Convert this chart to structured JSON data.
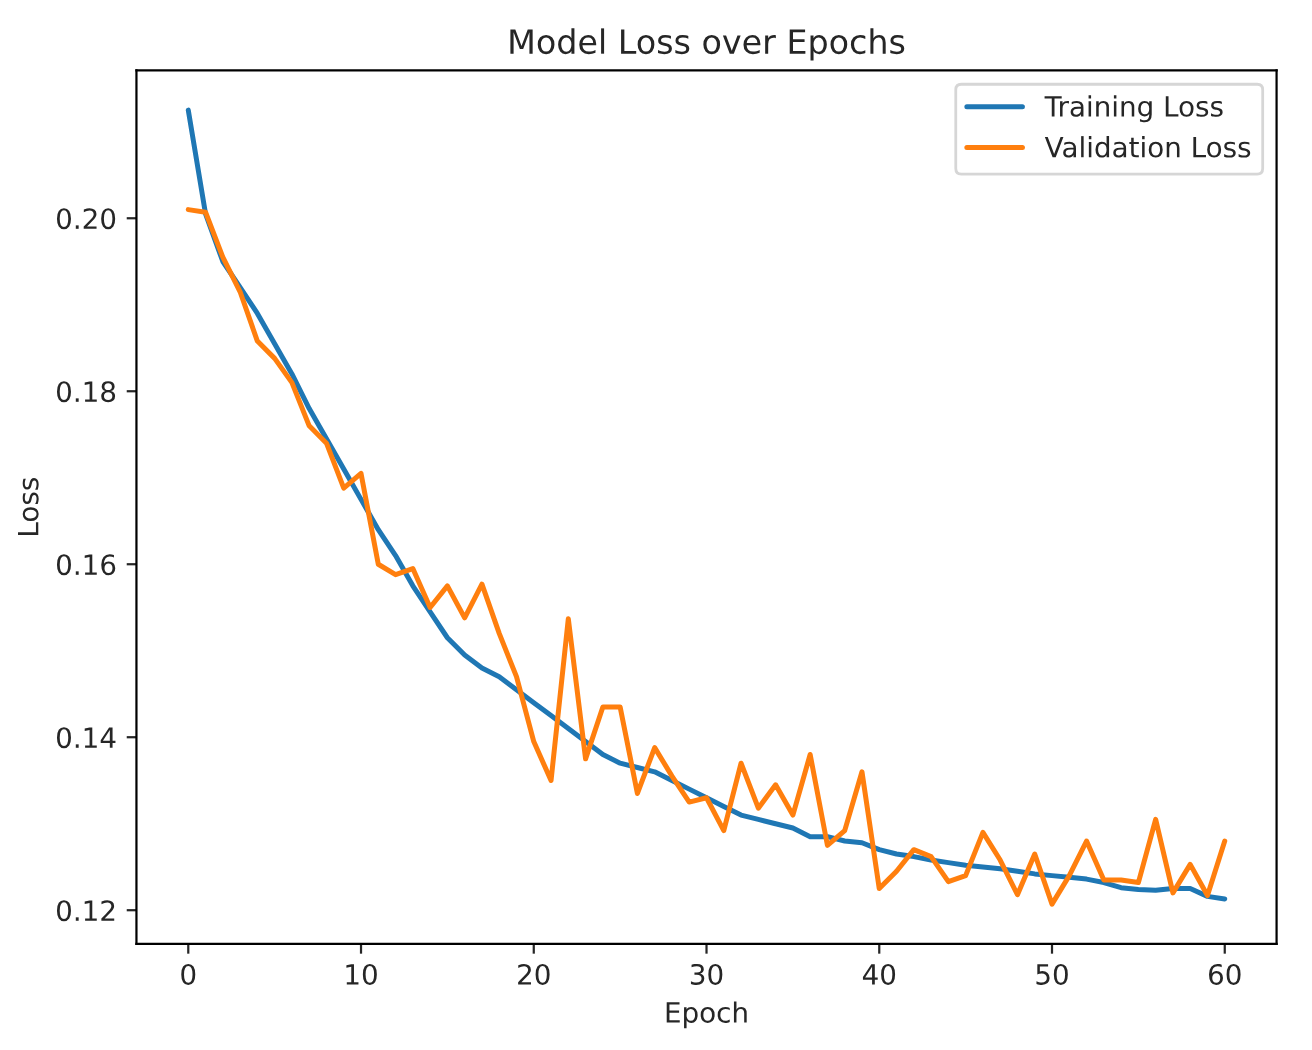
{
  "chart_data": {
    "type": "line",
    "title": "Model Loss over Epochs",
    "xlabel": "Epoch",
    "ylabel": "Loss",
    "x": [
      0,
      1,
      2,
      3,
      4,
      5,
      6,
      7,
      8,
      9,
      10,
      11,
      12,
      13,
      14,
      15,
      16,
      17,
      18,
      19,
      20,
      21,
      22,
      23,
      24,
      25,
      26,
      27,
      28,
      29,
      30,
      31,
      32,
      33,
      34,
      35,
      36,
      37,
      38,
      39,
      40,
      41,
      42,
      43,
      44,
      45,
      46,
      47,
      48,
      49,
      50,
      51,
      52,
      53,
      54,
      55,
      56,
      57,
      58,
      59,
      60
    ],
    "series": [
      {
        "name": "Training Loss",
        "color": "#1f77b4",
        "values": [
          0.2125,
          0.2005,
          0.195,
          0.192,
          0.189,
          0.1855,
          0.182,
          0.178,
          0.1745,
          0.171,
          0.1675,
          0.164,
          0.161,
          0.1575,
          0.1545,
          0.1515,
          0.1495,
          0.148,
          0.147,
          0.1455,
          0.144,
          0.1425,
          0.141,
          0.1395,
          0.138,
          0.137,
          0.1365,
          0.136,
          0.135,
          0.134,
          0.133,
          0.132,
          0.131,
          0.1305,
          0.13,
          0.1295,
          0.1285,
          0.1285,
          0.128,
          0.1278,
          0.127,
          0.1265,
          0.1262,
          0.1258,
          0.1255,
          0.1252,
          0.125,
          0.1248,
          0.1245,
          0.1242,
          0.124,
          0.1238,
          0.1236,
          0.1232,
          0.1226,
          0.1224,
          0.1223,
          0.1225,
          0.1225,
          0.1216,
          0.1213
        ]
      },
      {
        "name": "Validation Loss",
        "color": "#ff7f0e",
        "values": [
          0.201,
          0.2007,
          0.1955,
          0.1915,
          0.1858,
          0.1838,
          0.181,
          0.176,
          0.174,
          0.1688,
          0.1705,
          0.16,
          0.1588,
          0.1595,
          0.155,
          0.1575,
          0.1538,
          0.1577,
          0.152,
          0.147,
          0.1395,
          0.135,
          0.1537,
          0.1375,
          0.1435,
          0.1435,
          0.1335,
          0.1388,
          0.1355,
          0.1325,
          0.133,
          0.1292,
          0.137,
          0.1318,
          0.1345,
          0.131,
          0.138,
          0.1275,
          0.1292,
          0.136,
          0.1225,
          0.1245,
          0.127,
          0.1262,
          0.1233,
          0.124,
          0.129,
          0.1258,
          0.1218,
          0.1265,
          0.1207,
          0.124,
          0.128,
          0.1235,
          0.1235,
          0.1232,
          0.1305,
          0.122,
          0.1253,
          0.1217,
          0.128
        ]
      }
    ],
    "xlim": [
      -3,
      63
    ],
    "ylim": [
      0.1161,
      0.2171
    ],
    "xticks": [
      0,
      10,
      20,
      30,
      40,
      50,
      60
    ],
    "yticks": [
      {
        "value": 0.12,
        "label": "0.12"
      },
      {
        "value": 0.14,
        "label": "0.14"
      },
      {
        "value": 0.16,
        "label": "0.16"
      },
      {
        "value": 0.18,
        "label": "0.18"
      },
      {
        "value": 0.2,
        "label": "0.20"
      }
    ],
    "grid": false,
    "legend": "top right",
    "marker": "none",
    "line_style": "solid"
  }
}
